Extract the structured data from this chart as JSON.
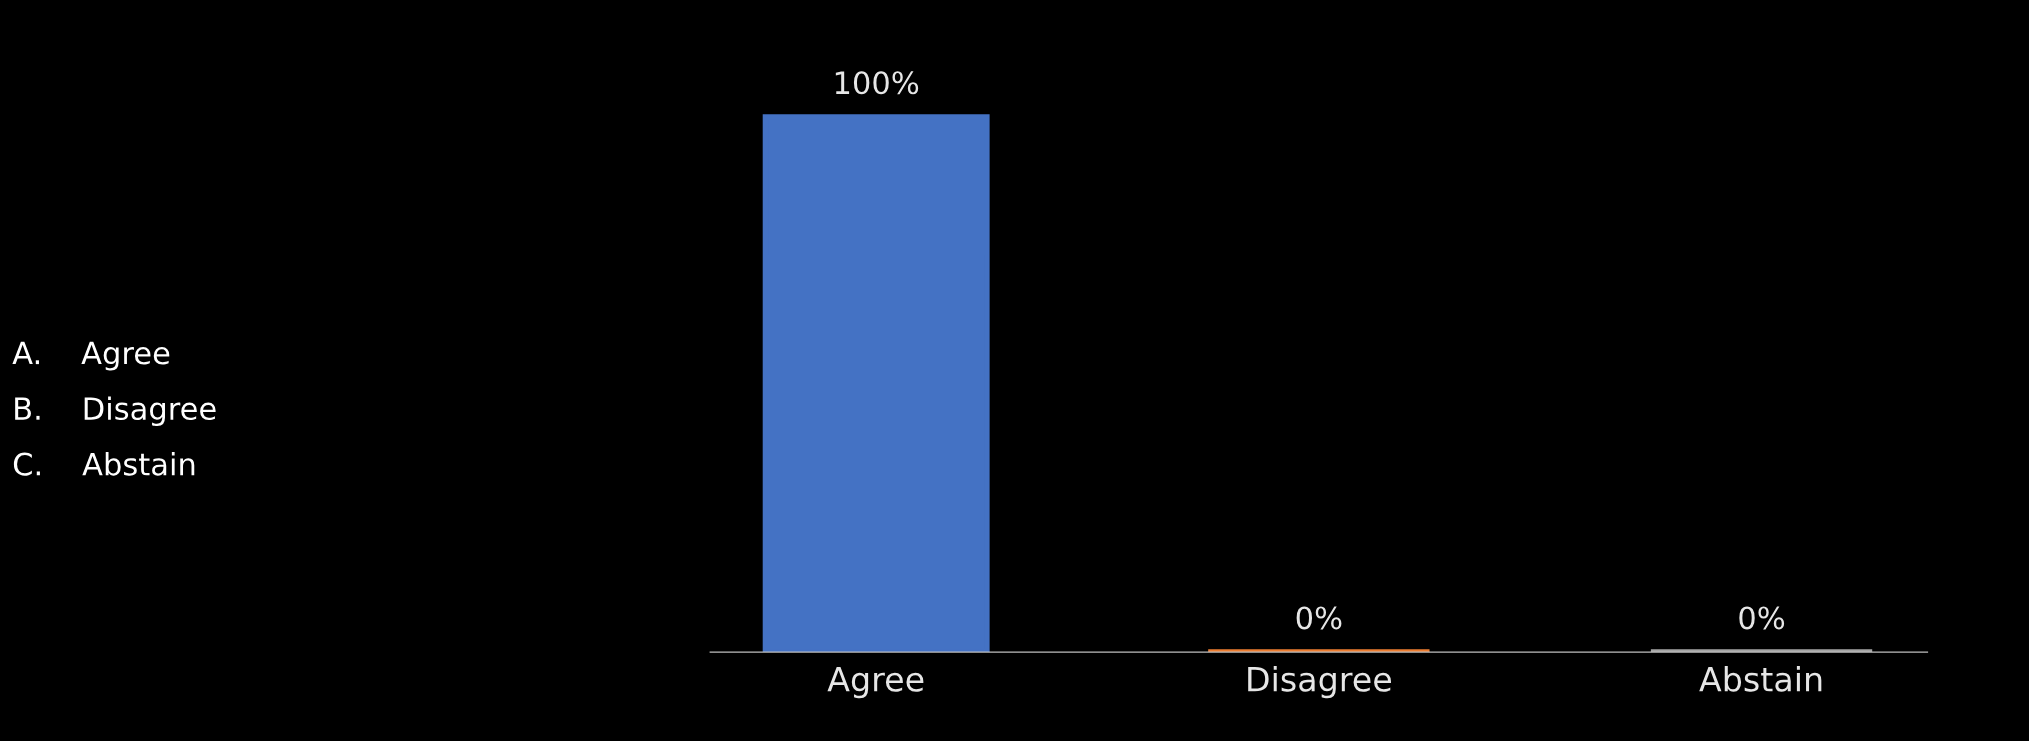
{
  "chart_data": {
    "type": "bar",
    "categories": [
      "Agree",
      "Disagree",
      "Abstain"
    ],
    "values": [
      100,
      0,
      0
    ],
    "colors": [
      "#4472c4",
      "#ed7d31",
      "#a5a5a5"
    ],
    "value_labels": [
      "100%",
      "0%",
      "0%"
    ],
    "tick_labels": "x",
    "annotations": [
      "A.\tAgree",
      "B.\tDisagree",
      "C.\tAbstain"
    ]
  }
}
